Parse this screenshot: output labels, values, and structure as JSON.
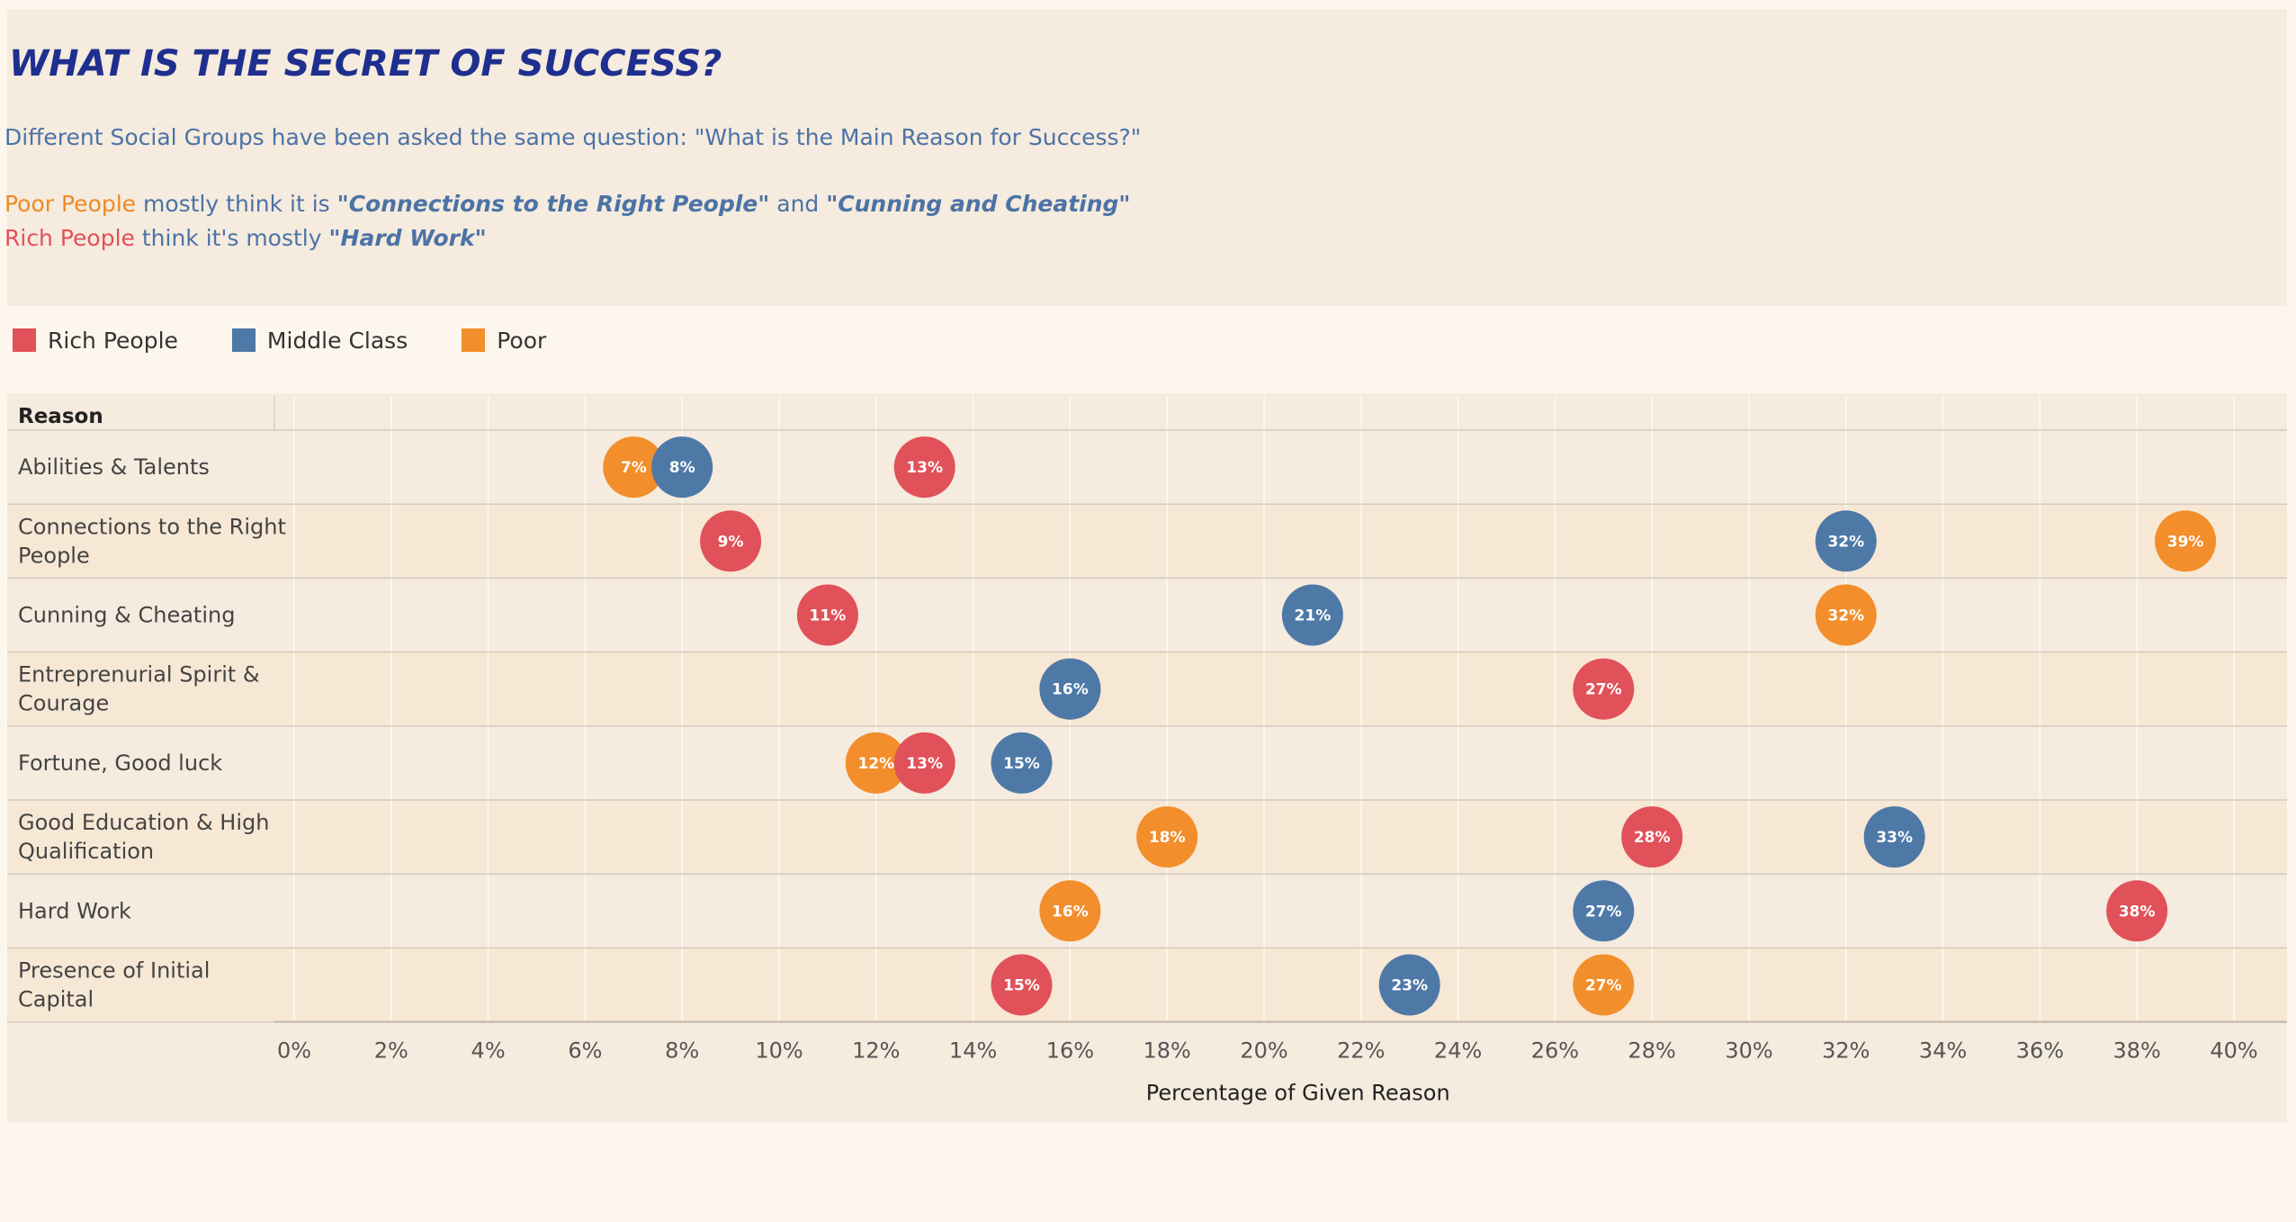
{
  "header": {
    "title": "WHAT IS THE SECRET OF SUCCESS?",
    "subtitle": "Different Social Groups have been asked the same question: \"What is the Main Reason for Success?\"",
    "line1": {
      "group": "Poor People",
      "text_a": " mostly think it is ",
      "quote_a": "\"Connections to the Right People\"",
      "text_b": " and ",
      "quote_b": "\"Cunning and  Cheating\""
    },
    "line2": {
      "group": "Rich People",
      "text_a": " think it's mostly ",
      "quote_a": "\"Hard Work\""
    }
  },
  "legend": {
    "items": [
      {
        "label": "Rich People",
        "color": "#e15159"
      },
      {
        "label": "Middle Class",
        "color": "#4e79a7"
      },
      {
        "label": "Poor",
        "color": "#f28e2b"
      }
    ]
  },
  "chart_data": {
    "type": "scatter",
    "row_header": "Reason",
    "xlabel": "Percentage of Given Reason",
    "xlim": [
      0,
      40
    ],
    "x_ticks": [
      "0%",
      "2%",
      "4%",
      "6%",
      "8%",
      "10%",
      "12%",
      "14%",
      "16%",
      "18%",
      "20%",
      "22%",
      "24%",
      "26%",
      "28%",
      "30%",
      "32%",
      "34%",
      "36%",
      "38%",
      "40%"
    ],
    "categories": [
      "Abilities & Talents",
      "Connections to the Right People",
      "Cunning & Cheating",
      "Entreprenurial Spirit & Courage",
      "Fortune, Good luck",
      "Good Education  & High Qualification",
      "Hard Work",
      "Presence of Initial Capital"
    ],
    "series": [
      {
        "name": "Rich People",
        "color": "#e15159",
        "values": [
          13,
          9,
          11,
          27,
          13,
          28,
          38,
          15
        ],
        "labels": [
          "13%",
          "9%",
          "11%",
          "27%",
          "13%",
          "28%",
          "38%",
          "15%"
        ]
      },
      {
        "name": "Middle Class",
        "color": "#4e79a7",
        "values": [
          8,
          32,
          21,
          16,
          15,
          33,
          27,
          23
        ],
        "labels": [
          "8%",
          "32%",
          "21%",
          "16%",
          "15%",
          "33%",
          "27%",
          "23%"
        ]
      },
      {
        "name": "Poor",
        "color": "#f28e2b",
        "values": [
          7,
          39,
          32,
          16,
          12,
          18,
          16,
          27
        ],
        "labels": [
          "7%",
          "39%",
          "32%",
          "16%",
          "12%",
          "18%",
          "16%",
          "27%"
        ]
      }
    ],
    "draw_order": [
      "Poor",
      "Middle Class",
      "Rich People"
    ],
    "grid": true,
    "legend_position": "top-left"
  }
}
